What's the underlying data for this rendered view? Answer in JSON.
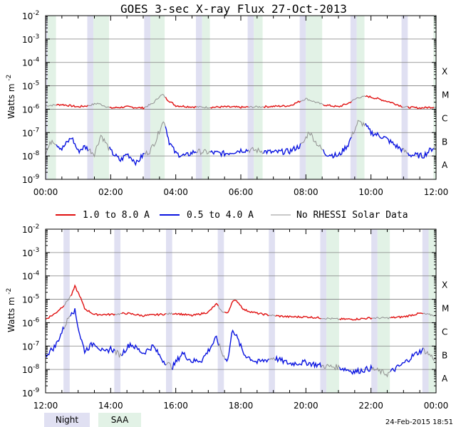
{
  "title": "GOES 3-sec X-ray Flux   27-Oct-2013",
  "footer_timestamp": "24-Feb-2015 18:51",
  "legend": {
    "long": "1.0 to 8.0 A",
    "short": "0.5 to 4.0 A",
    "norhessi": "No RHESSI Solar Data",
    "night": "Night",
    "saa": "SAA"
  },
  "colors": {
    "long": "#e01010",
    "short": "#0a14e0",
    "norhessi": "#909090",
    "night": "#e0e0f2",
    "saa": "#e2f2e6",
    "grid": "#808080"
  },
  "ylabel": "Watts m",
  "ylabel_sup": "-2",
  "ytick_labels": [
    "-2",
    "-3",
    "-4",
    "-5",
    "-6",
    "-7",
    "-8",
    "-9"
  ],
  "flare_classes": [
    "X",
    "M",
    "C",
    "B",
    "A"
  ],
  "chart_data": [
    {
      "type": "line",
      "scale": "log",
      "ylim": [
        1e-09,
        0.01
      ],
      "xlim_hours": [
        0,
        12
      ],
      "x_tick_labels": [
        "00:00",
        "02:00",
        "04:00",
        "06:00",
        "08:00",
        "10:00",
        "12:00"
      ],
      "night_intervals_hours": [
        [
          0.0,
          0.06
        ],
        [
          1.28,
          1.47
        ],
        [
          3.03,
          3.22
        ],
        [
          4.62,
          4.81
        ],
        [
          6.21,
          6.4
        ],
        [
          7.81,
          8.0
        ],
        [
          9.37,
          9.56
        ],
        [
          10.94,
          11.13
        ]
      ],
      "saa_intervals_hours": [
        [
          0.06,
          0.32
        ],
        [
          1.47,
          1.95
        ],
        [
          3.22,
          3.66
        ],
        [
          4.81,
          5.05
        ],
        [
          6.4,
          6.67
        ],
        [
          8.0,
          8.5
        ],
        [
          9.56,
          9.8
        ],
        [
          11.92,
          12.0
        ]
      ],
      "series": [
        {
          "name": "1.0 to 8.0 A",
          "x": [
            0,
            0.5,
            1,
            1.3,
            1.6,
            2,
            2.5,
            3,
            3.3,
            3.5,
            3.6,
            3.75,
            4,
            4.5,
            5,
            5.5,
            6,
            6.5,
            7,
            7.5,
            8,
            8.5,
            9,
            9.3,
            9.6,
            9.9,
            10.2,
            10.6,
            11,
            11.5,
            12
          ],
          "log10": [
            -5.85,
            -5.8,
            -5.9,
            -5.85,
            -5.75,
            -5.95,
            -5.9,
            -5.95,
            -5.75,
            -5.45,
            -5.38,
            -5.6,
            -5.85,
            -5.9,
            -5.92,
            -5.9,
            -5.92,
            -5.9,
            -5.88,
            -5.85,
            -5.55,
            -5.8,
            -5.9,
            -5.75,
            -5.5,
            -5.45,
            -5.55,
            -5.7,
            -5.9,
            -5.95,
            -5.9
          ]
        },
        {
          "name": "0.5 to 4.0 A",
          "x": [
            0,
            0.2,
            0.5,
            0.8,
            1,
            1.2,
            1.5,
            1.7,
            2,
            2.3,
            2.5,
            2.8,
            3,
            3.2,
            3.4,
            3.55,
            3.65,
            3.8,
            4,
            4.3,
            4.6,
            5,
            5.5,
            6,
            6.4,
            7,
            7.5,
            7.9,
            8.1,
            8.3,
            8.6,
            9,
            9.3,
            9.6,
            9.8,
            10,
            10.4,
            10.8,
            11.2,
            11.6,
            12
          ],
          "log10": [
            -7.9,
            -7.3,
            -7.7,
            -7.2,
            -7.8,
            -7.6,
            -7.9,
            -7.1,
            -7.8,
            -8.2,
            -7.9,
            -8.3,
            -7.95,
            -7.8,
            -7.3,
            -6.7,
            -6.5,
            -7.4,
            -7.9,
            -8.0,
            -7.8,
            -7.85,
            -7.9,
            -7.75,
            -7.75,
            -7.85,
            -7.8,
            -7.5,
            -6.95,
            -7.4,
            -7.9,
            -8.0,
            -7.5,
            -6.55,
            -6.65,
            -7.0,
            -7.2,
            -7.6,
            -7.95,
            -8.0,
            -7.55
          ]
        }
      ]
    },
    {
      "type": "line",
      "scale": "log",
      "ylim": [
        1e-09,
        0.01
      ],
      "xlim_hours": [
        12,
        24
      ],
      "x_tick_labels": [
        "12:00",
        "14:00",
        "16:00",
        "18:00",
        "20:00",
        "22:00",
        "00:00"
      ],
      "night_intervals_hours": [
        [
          12.55,
          12.74
        ],
        [
          14.11,
          14.3
        ],
        [
          15.7,
          15.89
        ],
        [
          17.29,
          17.48
        ],
        [
          18.86,
          19.05
        ],
        [
          20.44,
          20.63
        ],
        [
          22.01,
          22.2
        ],
        [
          23.58,
          23.77
        ]
      ],
      "saa_intervals_hours": [
        [
          20.63,
          21.02
        ],
        [
          22.2,
          22.58
        ],
        [
          23.77,
          24.0
        ]
      ],
      "series": [
        {
          "name": "1.0 to 8.0 A",
          "x": [
            12,
            12.3,
            12.6,
            12.8,
            12.9,
            13.05,
            13.2,
            13.5,
            14,
            14.5,
            15,
            15.5,
            16,
            16.5,
            17,
            17.25,
            17.4,
            17.6,
            17.75,
            17.9,
            18.1,
            18.5,
            19,
            19.5,
            20,
            20.5,
            21,
            21.5,
            22,
            22.5,
            23,
            23.5,
            24
          ],
          "log10": [
            -5.85,
            -5.6,
            -5.2,
            -4.8,
            -4.45,
            -4.85,
            -5.4,
            -5.65,
            -5.65,
            -5.6,
            -5.7,
            -5.65,
            -5.6,
            -5.7,
            -5.55,
            -5.2,
            -5.5,
            -5.6,
            -5.05,
            -5.1,
            -5.45,
            -5.6,
            -5.7,
            -5.75,
            -5.75,
            -5.8,
            -5.85,
            -5.85,
            -5.8,
            -5.8,
            -5.75,
            -5.6,
            -5.7
          ]
        },
        {
          "name": "0.5 to 4.0 A",
          "x": [
            12,
            12.3,
            12.6,
            12.8,
            12.9,
            13.05,
            13.2,
            13.5,
            13.8,
            14,
            14.3,
            14.6,
            15,
            15.3,
            15.6,
            15.9,
            16.2,
            16.5,
            16.8,
            17,
            17.25,
            17.45,
            17.6,
            17.75,
            17.9,
            18.1,
            18.5,
            19,
            19.5,
            20,
            20.5,
            21,
            21.5,
            22,
            22.5,
            23,
            23.3,
            23.6,
            24
          ],
          "log10": [
            -7.4,
            -7.0,
            -6.1,
            -5.5,
            -5.5,
            -6.5,
            -7.2,
            -6.85,
            -7.3,
            -7.1,
            -7.4,
            -6.9,
            -7.3,
            -7.0,
            -7.6,
            -7.9,
            -7.3,
            -7.65,
            -7.6,
            -7.2,
            -6.65,
            -7.4,
            -7.6,
            -6.25,
            -6.7,
            -7.35,
            -7.7,
            -7.5,
            -7.75,
            -7.7,
            -7.85,
            -7.9,
            -8.1,
            -7.95,
            -8.2,
            -7.75,
            -7.4,
            -7.15,
            -7.6
          ]
        }
      ]
    }
  ]
}
